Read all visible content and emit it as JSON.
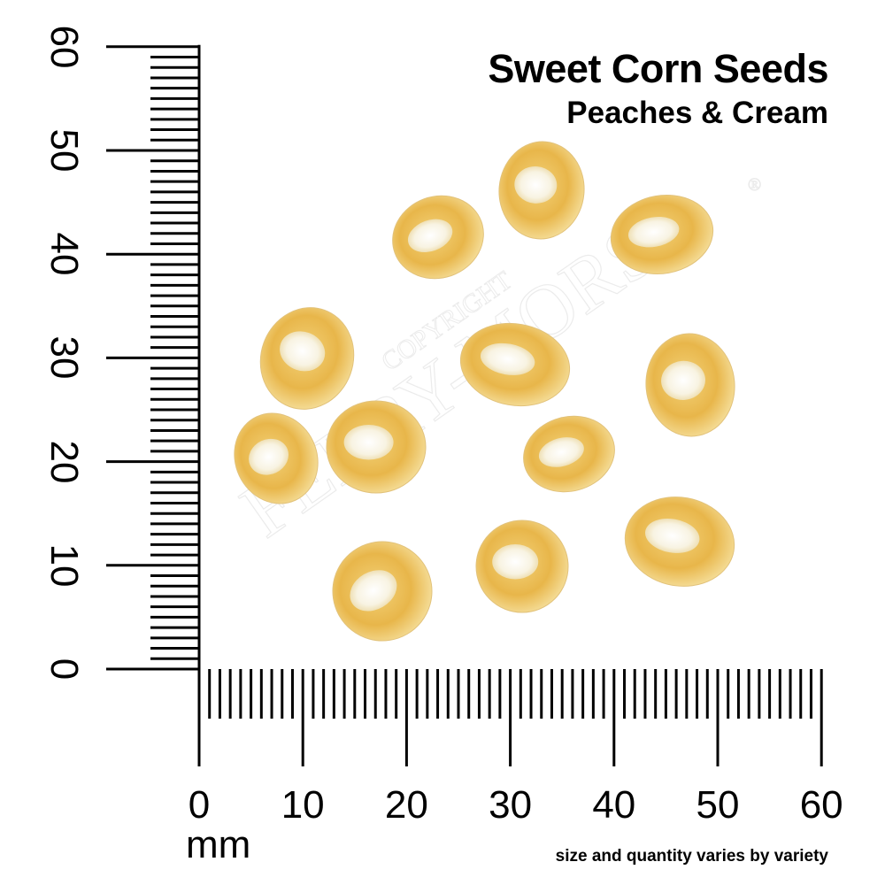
{
  "title": "Sweet Corn Seeds",
  "subtitle": "Peaches & Cream",
  "unit_label": "mm",
  "note": "size and quantity varies by variety",
  "watermark": {
    "line1": "COPYRIGHT",
    "line2": "FERRY-MORSE",
    "mark": "®"
  },
  "ruler": {
    "x_labels": [
      "0",
      "10",
      "20",
      "30",
      "40",
      "50",
      "60"
    ],
    "y_labels": [
      "0",
      "10",
      "20",
      "30",
      "40",
      "50",
      "60"
    ],
    "range_mm": [
      0,
      60
    ],
    "minor_step_mm": 1,
    "major_step_mm": 10
  },
  "seed_count": 12,
  "colors": {
    "seed": "#e9b94a",
    "seed_light": "#f7e3a6",
    "germ": "#fbf8ee",
    "ink": "#000000"
  }
}
